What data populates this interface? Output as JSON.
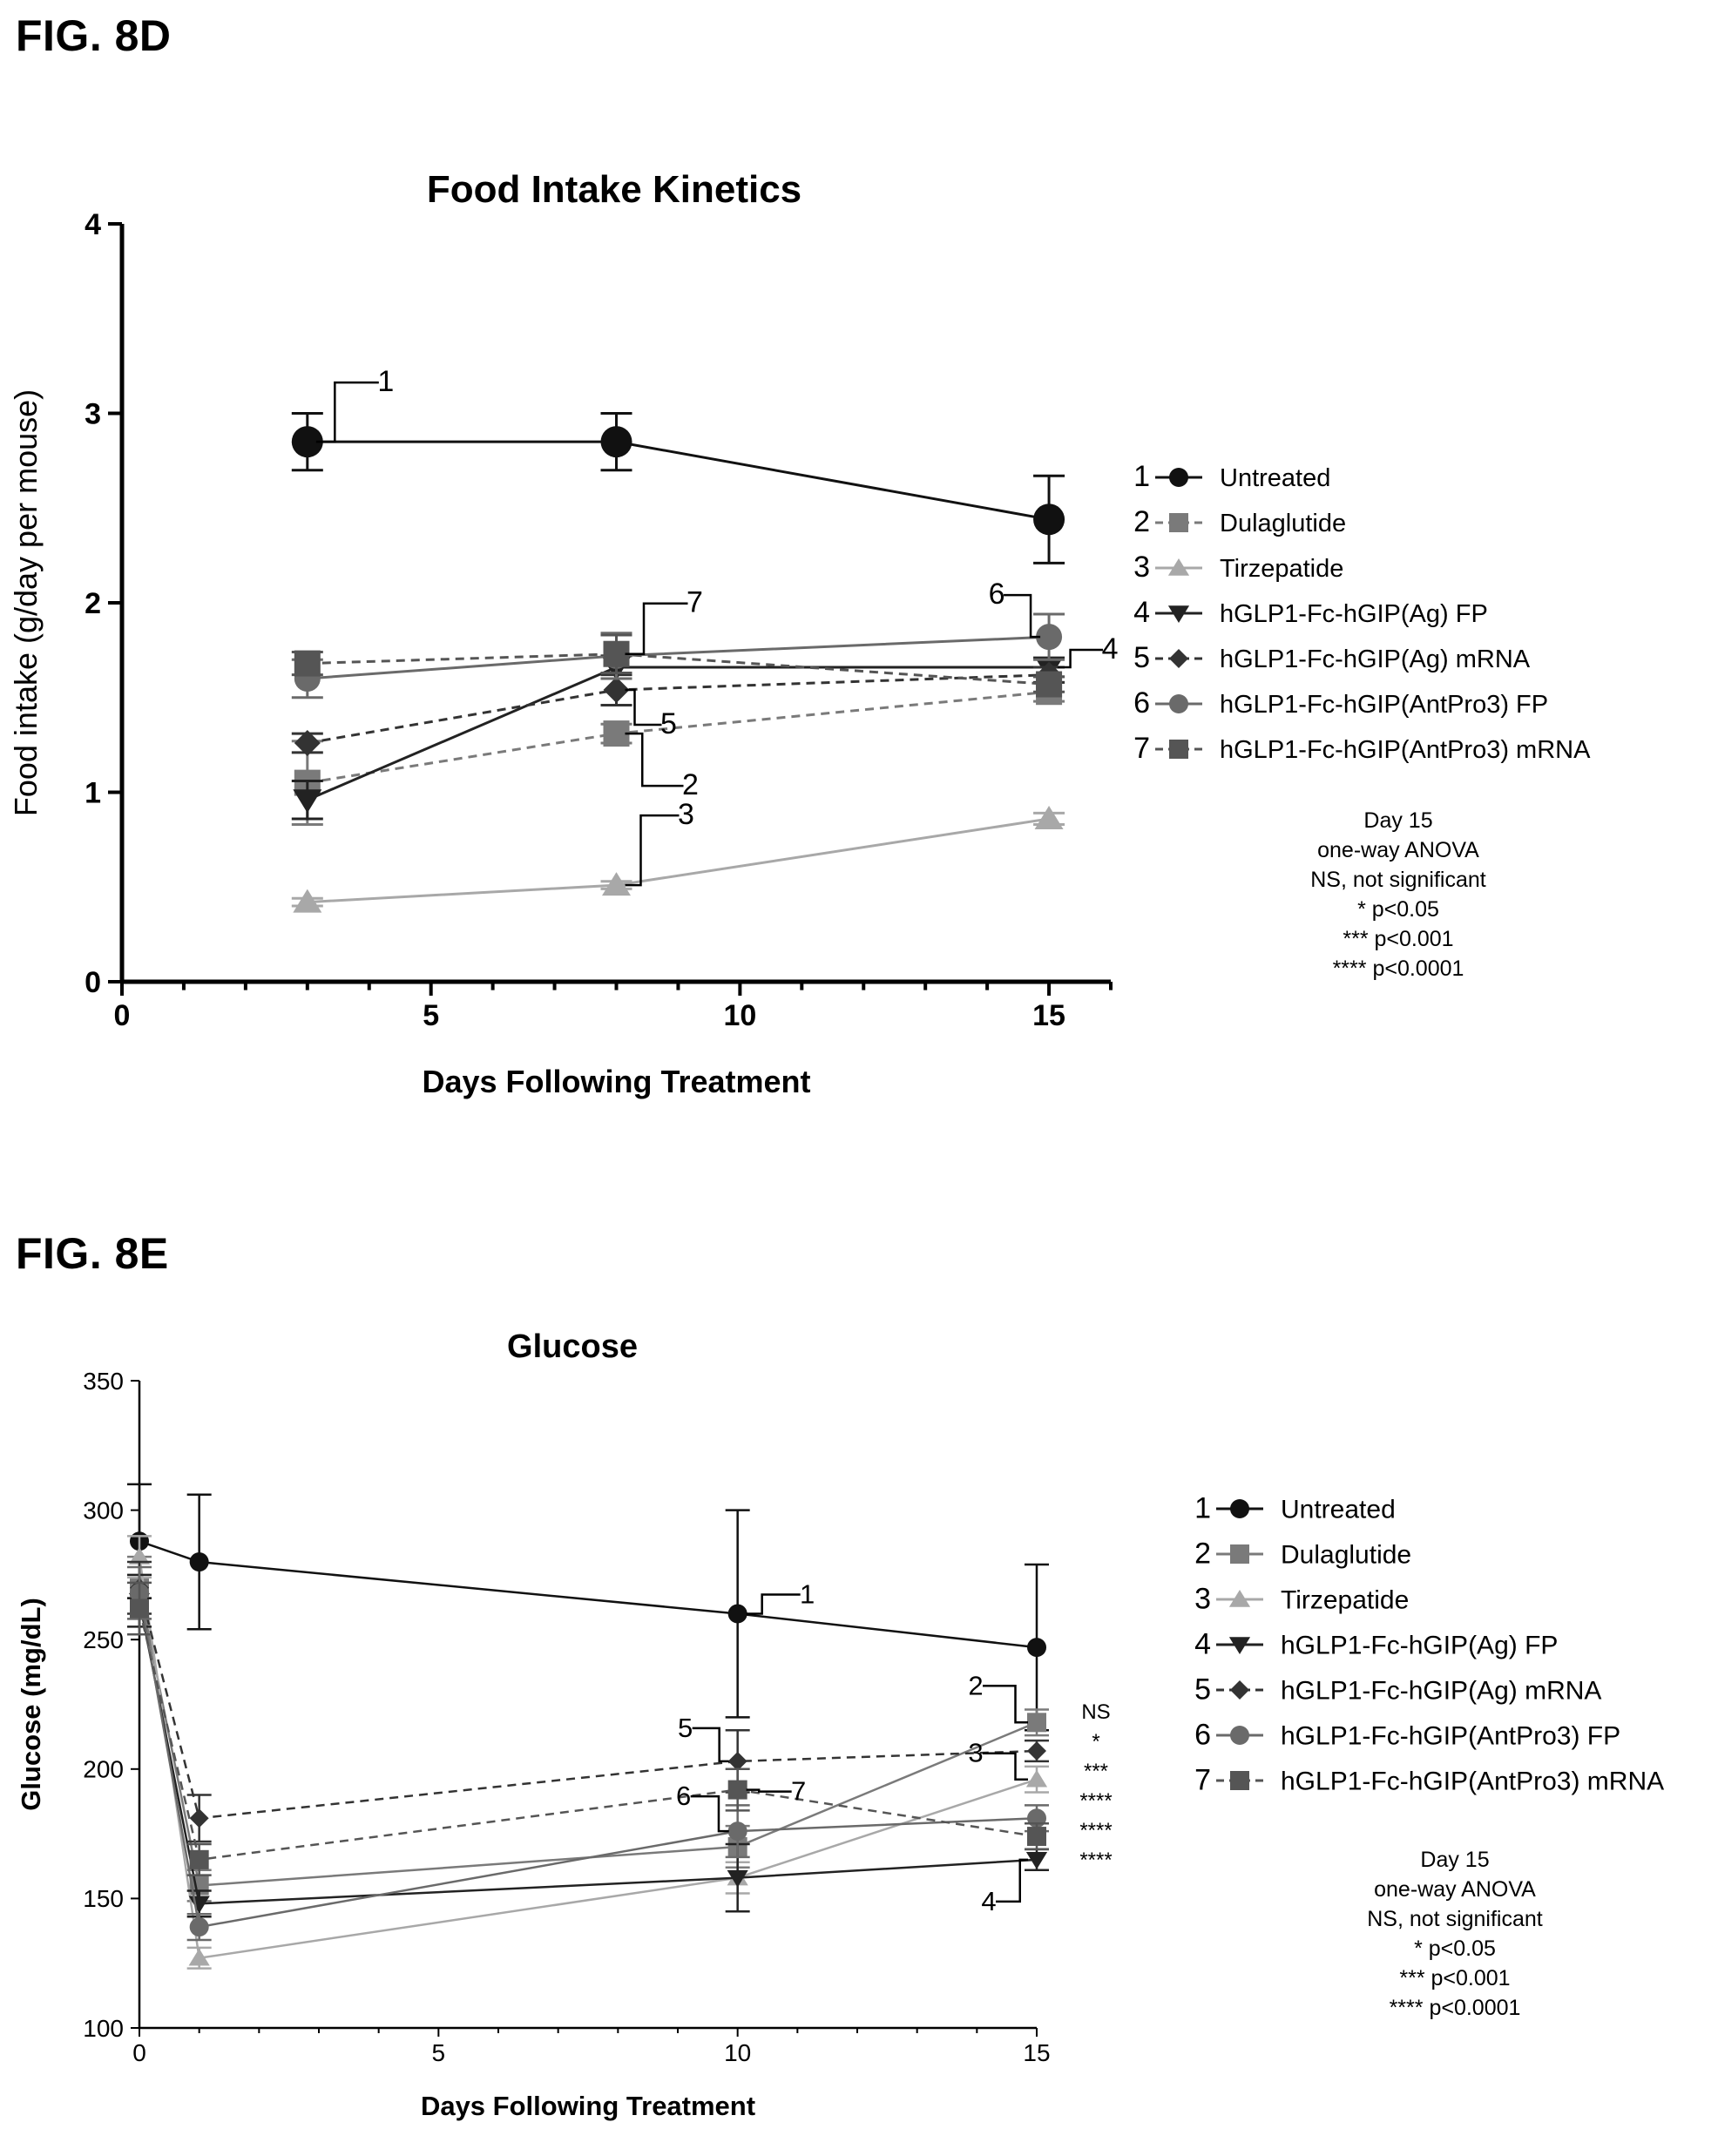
{
  "fig_d_label": "FIG. 8D",
  "fig_e_label": "FIG. 8E",
  "colors": {
    "s1": "#111111",
    "s2": "#7a7a7a",
    "s3": "#a8a8a8",
    "s4": "#222222",
    "s5": "#333333",
    "s6": "#6a6a6a",
    "s7": "#555555"
  },
  "icons": {
    "s1": "circle-marker",
    "s2": "square-marker",
    "s3": "triangle-up-marker",
    "s4": "triangle-down-marker",
    "s5": "diamond-marker",
    "s6": "circle-marker",
    "s7": "square-marker"
  },
  "chart_data": [
    {
      "type": "line",
      "title": "Food Intake Kinetics",
      "xlabel": "Days Following Treatment",
      "ylabel": "Food intake (g/day per mouse)",
      "xlim": [
        0,
        16
      ],
      "ylim": [
        0,
        4
      ],
      "xticks": [
        "0",
        "5",
        "10",
        "15"
      ],
      "yticks": [
        "0",
        "1",
        "2",
        "3",
        "4"
      ],
      "x": [
        3,
        8,
        15
      ],
      "series": [
        {
          "num": "1",
          "name": "Untreated",
          "values": [
            2.85,
            2.85,
            2.44
          ],
          "err": [
            0.15,
            0.15,
            0.23
          ],
          "dash": false
        },
        {
          "num": "2",
          "name": "Dulaglutide",
          "values": [
            1.05,
            1.31,
            1.53
          ],
          "err": [
            0.22,
            0.05,
            0.05
          ],
          "dash": true
        },
        {
          "num": "3",
          "name": "Tirzepatide",
          "values": [
            0.42,
            0.51,
            0.86
          ],
          "err": [
            0.02,
            0.02,
            0.03
          ],
          "dash": false
        },
        {
          "num": "4",
          "name": "hGLP1-Fc-hGIP(Ag) FP",
          "values": [
            0.96,
            1.66,
            1.66
          ],
          "err": [
            0.1,
            0.06,
            0.05
          ],
          "dash": false
        },
        {
          "num": "5",
          "name": "hGLP1-Fc-hGIP(Ag) mRNA",
          "values": [
            1.26,
            1.54,
            1.62
          ],
          "err": [
            0.05,
            0.08,
            0.04
          ],
          "dash": true
        },
        {
          "num": "6",
          "name": "hGLP1-Fc-hGIP(AntPro3) FP",
          "values": [
            1.6,
            1.72,
            1.82
          ],
          "err": [
            0.1,
            0.12,
            0.12
          ],
          "dash": false
        },
        {
          "num": "7",
          "name": "hGLP1-Fc-hGIP(AntPro3) mRNA",
          "values": [
            1.68,
            1.73,
            1.57
          ],
          "err": [
            0.06,
            0.1,
            0.04
          ],
          "dash": true
        }
      ],
      "callouts": [
        {
          "text": "1",
          "series": 0,
          "point": 0
        },
        {
          "text": "7",
          "series": 6,
          "point": 1
        },
        {
          "text": "5",
          "series": 4,
          "point": 1
        },
        {
          "text": "2",
          "series": 1,
          "point": 1
        },
        {
          "text": "3",
          "series": 2,
          "point": 1
        },
        {
          "text": "6",
          "series": 5,
          "point": 2
        },
        {
          "text": "4",
          "series": 3,
          "point": 2
        }
      ],
      "stats": [
        "Day 15",
        "one-way ANOVA",
        "NS, not significant",
        "* p<0.05",
        "*** p<0.001",
        "**** p<0.0001"
      ]
    },
    {
      "type": "line",
      "title": "Glucose",
      "xlabel": "Days Following Treatment",
      "ylabel": "Glucose (mg/dL)",
      "xlim": [
        0,
        15
      ],
      "ylim": [
        100,
        350
      ],
      "xticks": [
        "0",
        "5",
        "10",
        "15"
      ],
      "yticks": [
        "100",
        "150",
        "200",
        "250",
        "300",
        "350"
      ],
      "x": [
        0,
        1,
        10,
        15
      ],
      "series": [
        {
          "num": "1",
          "name": "Untreated",
          "values": [
            288,
            280,
            260,
            247
          ],
          "err": [
            22,
            26,
            40,
            32
          ],
          "dash": false
        },
        {
          "num": "2",
          "name": "Dulaglutide",
          "values": [
            270,
            155,
            170,
            218
          ],
          "err": [
            12,
            6,
            8,
            5
          ],
          "dash": false
        },
        {
          "num": "3",
          "name": "Tirzepatide",
          "values": [
            282,
            127,
            158,
            196
          ],
          "err": [
            8,
            4,
            6,
            5
          ],
          "dash": false
        },
        {
          "num": "4",
          "name": "hGLP1-Fc-hGIP(Ag) FP",
          "values": [
            265,
            148,
            158,
            165
          ],
          "err": [
            10,
            5,
            13,
            4
          ],
          "dash": false
        },
        {
          "num": "5",
          "name": "hGLP1-Fc-hGIP(Ag) mRNA",
          "values": [
            270,
            181,
            203,
            207
          ],
          "err": [
            10,
            9,
            12,
            4
          ],
          "dash": true
        },
        {
          "num": "6",
          "name": "hGLP1-Fc-hGIP(AntPro3) FP",
          "values": [
            268,
            139,
            176,
            181
          ],
          "err": [
            10,
            5,
            10,
            5
          ],
          "dash": false
        },
        {
          "num": "7",
          "name": "hGLP1-Fc-hGIP(AntPro3) mRNA",
          "values": [
            262,
            165,
            192,
            174
          ],
          "err": [
            10,
            6,
            8,
            5
          ],
          "dash": true
        }
      ],
      "callouts": [
        {
          "text": "1",
          "series": 0,
          "point": 2
        },
        {
          "text": "5",
          "series": 4,
          "point": 2
        },
        {
          "text": "7",
          "series": 6,
          "point": 2
        },
        {
          "text": "6",
          "series": 5,
          "point": 2
        },
        {
          "text": "2",
          "series": 1,
          "point": 3
        },
        {
          "text": "3",
          "series": 2,
          "point": 3
        },
        {
          "text": "4",
          "series": 3,
          "point": 3
        }
      ],
      "significance": [
        "NS",
        "*",
        "***",
        "****",
        "****",
        "****"
      ],
      "stats": [
        "Day 15",
        "one-way ANOVA",
        "NS, not significant",
        "* p<0.05",
        "*** p<0.001",
        "**** p<0.0001"
      ]
    }
  ]
}
